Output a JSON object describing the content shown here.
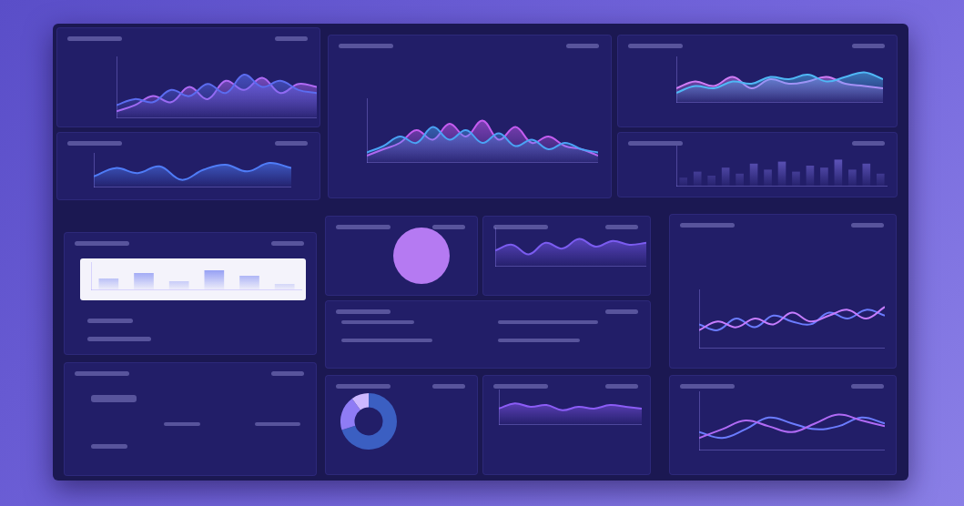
{
  "chart_data": [
    {
      "type": "area",
      "x": [
        0,
        1,
        2,
        3,
        4,
        5,
        6,
        7,
        8,
        9,
        10,
        11
      ],
      "xlim": [
        0,
        11
      ],
      "ylim": [
        0,
        100
      ],
      "tick_labels": false,
      "grid": false,
      "series": [
        {
          "color": "#5b6cf0",
          "values": [
            20,
            30,
            25,
            45,
            35,
            55,
            40,
            70,
            50,
            60,
            45,
            40
          ]
        },
        {
          "color": "#b06af5",
          "values": [
            10,
            20,
            35,
            25,
            50,
            30,
            60,
            45,
            65,
            40,
            55,
            50
          ]
        }
      ]
    },
    {
      "type": "area",
      "x": [
        0,
        1,
        2,
        3,
        4,
        5,
        6,
        7,
        8,
        9
      ],
      "xlim": [
        0,
        9
      ],
      "ylim": [
        0,
        100
      ],
      "tick_labels": false,
      "grid": false,
      "series": [
        {
          "color": "#4f7cf7",
          "values": [
            30,
            55,
            40,
            60,
            20,
            50,
            65,
            45,
            70,
            55
          ]
        }
      ]
    },
    {
      "type": "area",
      "x": [
        0,
        1,
        2,
        3,
        4,
        5,
        6,
        7,
        8,
        9,
        10,
        11,
        12,
        13,
        14
      ],
      "xlim": [
        0,
        14
      ],
      "ylim": [
        0,
        100
      ],
      "tick_labels": false,
      "grid": false,
      "series": [
        {
          "color": "#4aa3f5",
          "values": [
            15,
            25,
            40,
            30,
            55,
            35,
            50,
            30,
            45,
            25,
            35,
            20,
            30,
            20,
            15
          ]
        },
        {
          "color": "#c45cf0",
          "values": [
            10,
            20,
            30,
            50,
            35,
            60,
            40,
            65,
            35,
            55,
            30,
            40,
            25,
            20,
            10
          ]
        }
      ]
    },
    {
      "type": "area",
      "x": [
        0,
        1,
        2,
        3,
        4,
        5,
        6,
        7,
        8,
        9,
        10,
        11
      ],
      "xlim": [
        0,
        11
      ],
      "ylim": [
        0,
        100
      ],
      "tick_labels": false,
      "grid": false,
      "series": [
        {
          "color": "#4fb7f5",
          "values": [
            20,
            35,
            30,
            45,
            40,
            55,
            50,
            60,
            45,
            55,
            65,
            50
          ]
        },
        {
          "color": "#d07cf5",
          "values": [
            30,
            45,
            35,
            55,
            30,
            50,
            40,
            45,
            55,
            40,
            35,
            30
          ]
        }
      ]
    },
    {
      "type": "bar",
      "categories": [
        null,
        null,
        null,
        null,
        null,
        null,
        null,
        null,
        null,
        null,
        null,
        null,
        null,
        null,
        null
      ],
      "ylim": [
        0,
        100
      ],
      "tick_labels": false,
      "grid": false,
      "color": "#8a7cf5",
      "values": [
        20,
        35,
        25,
        45,
        30,
        55,
        40,
        60,
        35,
        50,
        45,
        65,
        40,
        55,
        30
      ]
    },
    {
      "type": "bar",
      "categories": [
        null,
        null,
        null,
        null,
        null,
        null
      ],
      "ylim": [
        0,
        10
      ],
      "tick_labels": false,
      "grid": false,
      "color": "#5b6cf0",
      "values": [
        4,
        6,
        3,
        7,
        5,
        2
      ]
    },
    {
      "type": "pie",
      "values": [
        100
      ],
      "colors": [
        "#b57af2"
      ]
    },
    {
      "type": "area",
      "x": [
        0,
        1,
        2,
        3,
        4,
        5,
        6,
        7,
        8,
        9
      ],
      "xlim": [
        0,
        9
      ],
      "ylim": [
        0,
        100
      ],
      "tick_labels": false,
      "grid": false,
      "series": [
        {
          "color": "#7b5cf0",
          "values": [
            40,
            55,
            30,
            60,
            45,
            70,
            50,
            65,
            55,
            60
          ]
        }
      ]
    },
    {
      "type": "line",
      "x": [
        0,
        1,
        2,
        3,
        4,
        5,
        6,
        7,
        8,
        9,
        10
      ],
      "xlim": [
        0,
        10
      ],
      "ylim": [
        0,
        100
      ],
      "tick_labels": false,
      "grid": false,
      "series": [
        {
          "color": "#c77dff",
          "values": [
            30,
            45,
            35,
            50,
            40,
            60,
            45,
            55,
            65,
            50,
            70
          ]
        },
        {
          "color": "#6b7cff",
          "values": [
            40,
            30,
            50,
            35,
            55,
            45,
            40,
            60,
            50,
            65,
            55
          ]
        }
      ]
    },
    {
      "type": "doughnut",
      "values": [
        70,
        20,
        10
      ],
      "colors": [
        "#3b5fc2",
        "#8f7cf5",
        "#cdb8ff"
      ]
    },
    {
      "type": "area",
      "x": [
        0,
        1,
        2,
        3,
        4,
        5,
        6,
        7,
        8,
        9
      ],
      "xlim": [
        0,
        9
      ],
      "ylim": [
        0,
        100
      ],
      "tick_labels": false,
      "grid": false,
      "series": [
        {
          "color": "#8b5cf6",
          "values": [
            45,
            60,
            50,
            55,
            40,
            50,
            45,
            55,
            50,
            45
          ]
        }
      ]
    },
    {
      "type": "line",
      "x": [
        0,
        1,
        2,
        3,
        4,
        5,
        6,
        7,
        8
      ],
      "xlim": [
        0,
        8
      ],
      "ylim": [
        0,
        100
      ],
      "tick_labels": false,
      "grid": false,
      "series": [
        {
          "color": "#b06af5",
          "values": [
            20,
            35,
            50,
            40,
            30,
            45,
            60,
            50,
            40
          ]
        },
        {
          "color": "#6b7cff",
          "values": [
            30,
            20,
            35,
            55,
            45,
            35,
            40,
            55,
            45
          ]
        }
      ]
    }
  ]
}
